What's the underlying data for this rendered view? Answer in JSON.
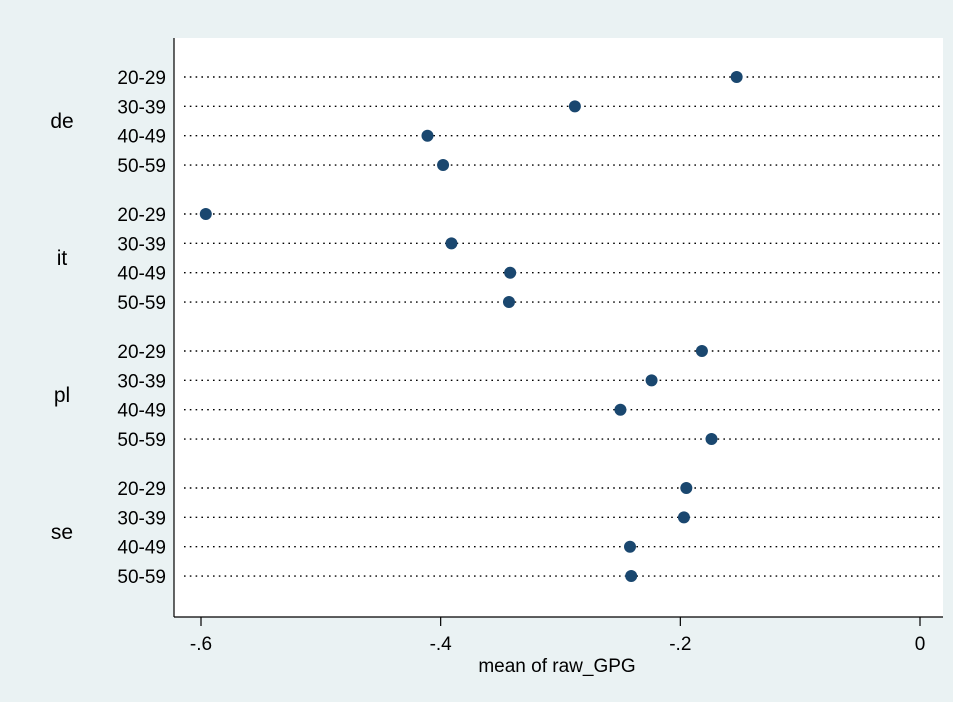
{
  "chart_data": {
    "type": "scatter",
    "subtype": "dot-plot",
    "title": "",
    "xlabel": "mean of raw_GPG",
    "ylabel": "",
    "xlim": [
      -0.615,
      0.02
    ],
    "xticks": [
      -0.6,
      -0.4,
      -0.2,
      0
    ],
    "xtick_labels": [
      "-.6",
      "-.4",
      "-.2",
      "0"
    ],
    "grid": true,
    "legend": "none",
    "colors": {
      "outer_background": "#EAF2F3",
      "plot_background": "#FFFFFF",
      "marker": "#1A476F",
      "grid_line": "#000000",
      "axis": "#000000"
    },
    "groups": [
      {
        "label": "de",
        "rows": [
          {
            "label": "20-29",
            "value": -0.153
          },
          {
            "label": "30-39",
            "value": -0.288
          },
          {
            "label": "40-49",
            "value": -0.411
          },
          {
            "label": "50-59",
            "value": -0.398
          }
        ]
      },
      {
        "label": "it",
        "rows": [
          {
            "label": "20-29",
            "value": -0.596
          },
          {
            "label": "30-39",
            "value": -0.391
          },
          {
            "label": "40-49",
            "value": -0.342
          },
          {
            "label": "50-59",
            "value": -0.343
          }
        ]
      },
      {
        "label": "pl",
        "rows": [
          {
            "label": "20-29",
            "value": -0.182
          },
          {
            "label": "30-39",
            "value": -0.224
          },
          {
            "label": "40-49",
            "value": -0.25
          },
          {
            "label": "50-59",
            "value": -0.174
          }
        ]
      },
      {
        "label": "se",
        "rows": [
          {
            "label": "20-29",
            "value": -0.195
          },
          {
            "label": "30-39",
            "value": -0.197
          },
          {
            "label": "40-49",
            "value": -0.242
          },
          {
            "label": "50-59",
            "value": -0.241
          }
        ]
      }
    ]
  }
}
